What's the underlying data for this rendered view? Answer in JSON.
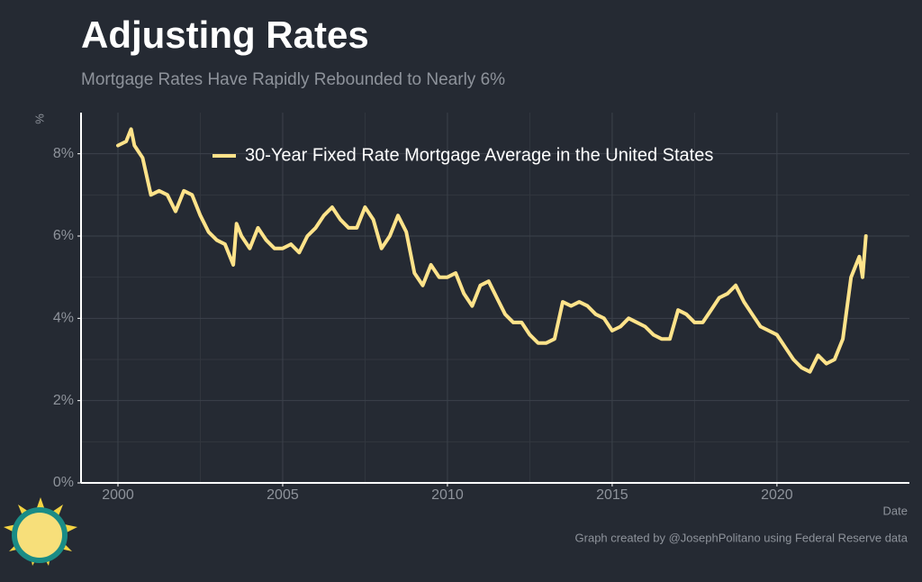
{
  "chart_data": {
    "type": "line",
    "title": "Adjusting Rates",
    "subtitle": "Mortgage Rates Have Rapidly Rebounded to Nearly 6%",
    "y_label": "%",
    "x_label": "Date",
    "caption": "Graph created by @JosephPolitano using Federal Reserve data",
    "x": [
      2000.0,
      2000.25,
      2000.4,
      2000.5,
      2000.75,
      2001.0,
      2001.25,
      2001.5,
      2001.75,
      2002.0,
      2002.25,
      2002.5,
      2002.75,
      2003.0,
      2003.25,
      2003.5,
      2003.6,
      2003.75,
      2004.0,
      2004.25,
      2004.5,
      2004.75,
      2005.0,
      2005.25,
      2005.5,
      2005.75,
      2006.0,
      2006.25,
      2006.5,
      2006.75,
      2007.0,
      2007.25,
      2007.5,
      2007.75,
      2008.0,
      2008.25,
      2008.5,
      2008.75,
      2009.0,
      2009.25,
      2009.5,
      2009.75,
      2010.0,
      2010.25,
      2010.5,
      2010.75,
      2011.0,
      2011.25,
      2011.5,
      2011.75,
      2012.0,
      2012.25,
      2012.5,
      2012.75,
      2013.0,
      2013.25,
      2013.5,
      2013.75,
      2014.0,
      2014.25,
      2014.5,
      2014.75,
      2015.0,
      2015.25,
      2015.5,
      2015.75,
      2016.0,
      2016.25,
      2016.5,
      2016.75,
      2017.0,
      2017.25,
      2017.5,
      2017.75,
      2018.0,
      2018.25,
      2018.5,
      2018.75,
      2019.0,
      2019.25,
      2019.5,
      2019.75,
      2020.0,
      2020.25,
      2020.5,
      2020.75,
      2021.0,
      2021.25,
      2021.5,
      2021.75,
      2022.0,
      2022.25,
      2022.4,
      2022.5,
      2022.6,
      2022.7
    ],
    "series": [
      {
        "name": "30-Year Fixed Rate Mortgage Average in the United States",
        "color": "#ffe38a",
        "values": [
          8.2,
          8.3,
          8.6,
          8.2,
          7.9,
          7.0,
          7.1,
          7.0,
          6.6,
          7.1,
          7.0,
          6.5,
          6.1,
          5.9,
          5.8,
          5.3,
          6.3,
          6.0,
          5.7,
          6.2,
          5.9,
          5.7,
          5.7,
          5.8,
          5.6,
          6.0,
          6.2,
          6.5,
          6.7,
          6.4,
          6.2,
          6.2,
          6.7,
          6.4,
          5.7,
          6.0,
          6.5,
          6.1,
          5.1,
          4.8,
          5.3,
          5.0,
          5.0,
          5.1,
          4.6,
          4.3,
          4.8,
          4.9,
          4.5,
          4.1,
          3.9,
          3.9,
          3.6,
          3.4,
          3.4,
          3.5,
          4.4,
          4.3,
          4.4,
          4.3,
          4.1,
          4.0,
          3.7,
          3.8,
          4.0,
          3.9,
          3.8,
          3.6,
          3.5,
          3.5,
          4.2,
          4.1,
          3.9,
          3.9,
          4.2,
          4.5,
          4.6,
          4.8,
          4.4,
          4.1,
          3.8,
          3.7,
          3.6,
          3.3,
          3.0,
          2.8,
          2.7,
          3.1,
          2.9,
          3.0,
          3.5,
          5.0,
          5.3,
          5.5,
          5.0,
          6.0
        ]
      }
    ],
    "xlim": [
      1998.88,
      2024.02
    ],
    "ylim": [
      0,
      9
    ],
    "xticks": [
      2000,
      2005,
      2010,
      2015,
      2020
    ],
    "yticks": [
      {
        "value": 0,
        "label": "0%"
      },
      {
        "value": 2,
        "label": "2%"
      },
      {
        "value": 4,
        "label": "4%"
      },
      {
        "value": 6,
        "label": "6%"
      },
      {
        "value": 8,
        "label": "8%"
      }
    ],
    "grid": true,
    "legend": "top"
  }
}
